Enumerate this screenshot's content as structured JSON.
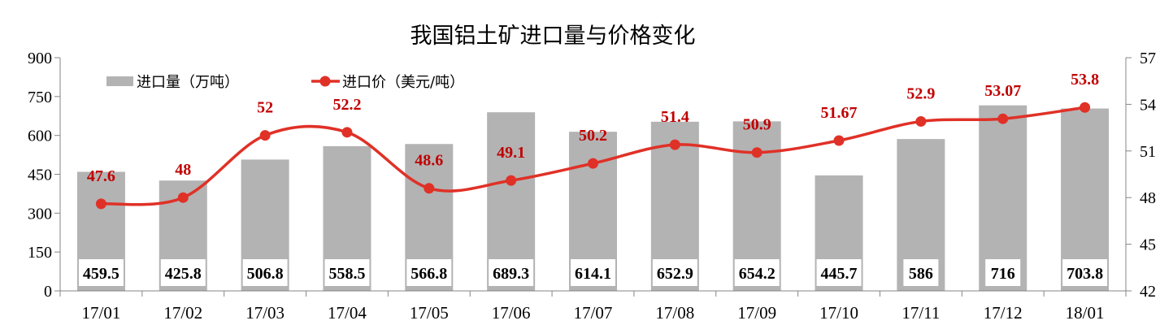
{
  "chart_data": {
    "type": "bar+line",
    "title": "我国铝土矿进口量与价格变化",
    "categories": [
      "17/01",
      "17/02",
      "17/03",
      "17/04",
      "17/05",
      "17/06",
      "17/07",
      "17/08",
      "17/09",
      "17/10",
      "17/11",
      "17/12",
      "18/01"
    ],
    "series": [
      {
        "name": "进口量（万吨）",
        "type": "bar",
        "axis": "left",
        "color": "#b3b3b3",
        "values": [
          459.5,
          425.8,
          506.8,
          558.5,
          566.8,
          689.3,
          614.1,
          652.9,
          654.2,
          445.7,
          586,
          716,
          703.8
        ],
        "labels": [
          "459.5",
          "425.8",
          "506.8",
          "558.5",
          "566.8",
          "689.3",
          "614.1",
          "652.9",
          "654.2",
          "445.7",
          "586",
          "716",
          "703.8"
        ]
      },
      {
        "name": "进口价（美元/吨）",
        "type": "line",
        "smooth": true,
        "axis": "right",
        "color": "#e03127",
        "label_color": "#c00000",
        "values": [
          47.6,
          48,
          52,
          52.2,
          48.6,
          49.1,
          50.2,
          51.4,
          50.9,
          51.67,
          52.9,
          53.07,
          53.8
        ],
        "labels": [
          "47.6",
          "48",
          "52",
          "52.2",
          "48.6",
          "49.1",
          "50.2",
          "51.4",
          "50.9",
          "51.67",
          "52.9",
          "53.07",
          "53.8"
        ]
      }
    ],
    "y_left": {
      "range": [
        0,
        900
      ],
      "ticks": [
        "0",
        "150",
        "300",
        "450",
        "600",
        "750",
        "900"
      ]
    },
    "y_right": {
      "range": [
        42,
        57
      ],
      "ticks": [
        "42",
        "45",
        "48",
        "51",
        "54",
        "57"
      ]
    },
    "grid": false,
    "legend": "top-left"
  }
}
